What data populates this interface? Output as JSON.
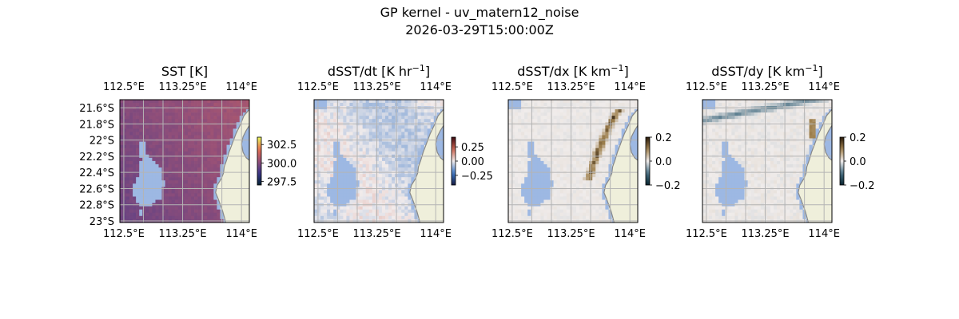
{
  "figure": {
    "title_line1": "GP kernel - uv_matern12_noise",
    "title_line2": "2026-03-29T15:00:00Z"
  },
  "colors": {
    "land": "#efefdb",
    "ocean_mask": "#9db8e3",
    "coastline": "#888888",
    "gridline": "#b4b4b4"
  },
  "chart_data": [
    {
      "type": "heatmap",
      "id": "sst",
      "title": "SST [K]",
      "title_unit_sup": "",
      "title_tail": "",
      "x_ticks": [
        "112.5°E",
        "113.25°E",
        "114°E"
      ],
      "y_ticks": [
        "21.6°S",
        "21.8°S",
        "22°S",
        "22.2°S",
        "22.4°S",
        "22.6°S",
        "22.8°S",
        "23°S"
      ],
      "show_y_ticks": true,
      "xlim": [
        112.45,
        114.1
      ],
      "ylim": [
        -23.02,
        -21.5
      ],
      "colorbar": {
        "min": 297.0,
        "max": 303.5,
        "ticks": [
          "302.5",
          "300.0",
          "297.5"
        ],
        "tick_values": [
          302.5,
          300.0,
          297.5
        ],
        "cmap": "thermal"
      },
      "field_range": [
        298.6,
        301.2
      ]
    },
    {
      "type": "heatmap",
      "id": "dsst_dt",
      "title": "dSST/dt [K hr",
      "title_unit_sup": "−1",
      "title_tail": "]",
      "x_ticks": [
        "112.5°E",
        "113.25°E",
        "114°E"
      ],
      "show_y_ticks": false,
      "xlim": [
        112.45,
        114.1
      ],
      "ylim": [
        -23.02,
        -21.5
      ],
      "colorbar": {
        "min": -0.42,
        "max": 0.42,
        "ticks": [
          "0.25",
          "0.00",
          "−0.25"
        ],
        "tick_values": [
          0.25,
          0.0,
          -0.25
        ],
        "cmap": "balance"
      },
      "field_range": [
        -0.12,
        0.05
      ]
    },
    {
      "type": "heatmap",
      "id": "dsst_dx",
      "title": "dSST/dx [K km",
      "title_unit_sup": "−1",
      "title_tail": "]",
      "x_ticks": [
        "112.5°E",
        "113.25°E",
        "114°E"
      ],
      "show_y_ticks": false,
      "xlim": [
        112.45,
        114.1
      ],
      "ylim": [
        -23.02,
        -21.5
      ],
      "colorbar": {
        "min": -0.2,
        "max": 0.2,
        "ticks": [
          "0.2",
          "0.0",
          "−0.2"
        ],
        "tick_values": [
          0.2,
          0.0,
          -0.2
        ],
        "cmap": "diff"
      },
      "field_range": [
        -0.03,
        0.18
      ]
    },
    {
      "type": "heatmap",
      "id": "dsst_dy",
      "title": "dSST/dy [K km",
      "title_unit_sup": "−1",
      "title_tail": "]",
      "x_ticks": [
        "112.5°E",
        "113.25°E",
        "114°E"
      ],
      "show_y_ticks": false,
      "xlim": [
        112.45,
        114.1
      ],
      "ylim": [
        -23.02,
        -21.5
      ],
      "colorbar": {
        "min": -0.2,
        "max": 0.2,
        "ticks": [
          "0.2",
          "0.0",
          "−0.2"
        ],
        "tick_values": [
          0.2,
          0.0,
          -0.2
        ],
        "cmap": "diff"
      },
      "field_range": [
        -0.08,
        0.12
      ]
    }
  ]
}
